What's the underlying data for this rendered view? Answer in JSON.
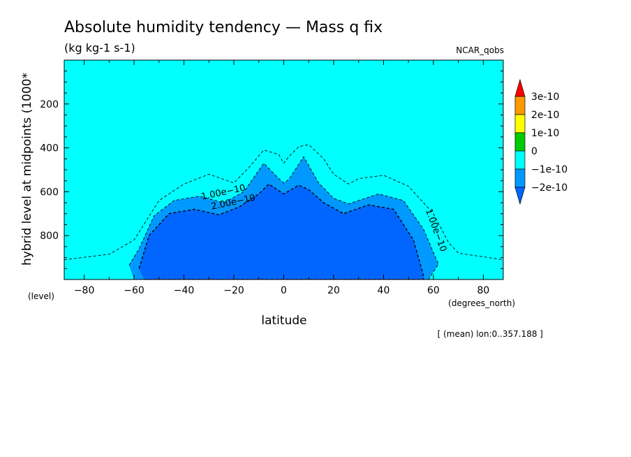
{
  "chart_data": {
    "type": "heatmap",
    "title": "Absolute humidity tendency — Mass q fix",
    "units": "(kg kg-1 s-1)",
    "source_label": "NCAR_qobs",
    "xlabel": "latitude",
    "xunits": "(degrees_north)",
    "ylabel": "hybrid level at midpoints (1000*",
    "yunits": "(level)",
    "footer": "[ (mean) lon:0..357.188 ]",
    "xlim": [
      -88,
      88
    ],
    "ylim": [
      1000,
      0
    ],
    "xticks": [
      -80,
      -60,
      -40,
      -20,
      0,
      20,
      40,
      60,
      80
    ],
    "xtick_labels": [
      "−80",
      "−60",
      "−40",
      "−20",
      "0",
      "20",
      "40",
      "60",
      "80"
    ],
    "yticks": [
      200,
      400,
      600,
      800
    ],
    "ytick_labels": [
      "200",
      "400",
      "600",
      "800"
    ],
    "background_color": "#00ffff",
    "levels": [
      {
        "label": "3e-10",
        "color": "#ff0000"
      },
      {
        "label": "2e-10",
        "color": "#ff9900"
      },
      {
        "label": "1e-10",
        "color": "#ffff00"
      },
      {
        "label": "0",
        "color": "#00cc00"
      },
      {
        "label": "−1e-10",
        "color": "#00ffff"
      },
      {
        "label": "−2e-10",
        "color": "#0099ff"
      }
    ],
    "lowest_color": "#0066ff",
    "contour_labels": [
      {
        "text": "1.00e−10",
        "x": -24,
        "y": 615
      },
      {
        "text": "2.00e−10",
        "x": -20,
        "y": 660
      },
      {
        "text": "1.00e−10",
        "x": 60,
        "y": 780
      }
    ],
    "contours": [
      {
        "name": "outer",
        "points": [
          [
            -88,
            910
          ],
          [
            -70,
            885
          ],
          [
            -60,
            820
          ],
          [
            -50,
            640
          ],
          [
            -40,
            565
          ],
          [
            -30,
            520
          ],
          [
            -20,
            560
          ],
          [
            -14,
            490
          ],
          [
            -8,
            410
          ],
          [
            -2,
            430
          ],
          [
            0,
            470
          ],
          [
            2,
            440
          ],
          [
            6,
            395
          ],
          [
            10,
            385
          ],
          [
            16,
            450
          ],
          [
            20,
            520
          ],
          [
            26,
            565
          ],
          [
            30,
            540
          ],
          [
            40,
            525
          ],
          [
            50,
            575
          ],
          [
            60,
            700
          ],
          [
            66,
            830
          ],
          [
            70,
            880
          ],
          [
            88,
            910
          ]
        ]
      },
      {
        "name": "middle",
        "points": [
          [
            -62,
            935
          ],
          [
            -58,
            860
          ],
          [
            -52,
            710
          ],
          [
            -44,
            640
          ],
          [
            -34,
            620
          ],
          [
            -24,
            650
          ],
          [
            -16,
            600
          ],
          [
            -8,
            470
          ],
          [
            -2,
            540
          ],
          [
            0,
            560
          ],
          [
            2,
            545
          ],
          [
            8,
            440
          ],
          [
            14,
            560
          ],
          [
            20,
            630
          ],
          [
            26,
            655
          ],
          [
            38,
            610
          ],
          [
            48,
            640
          ],
          [
            56,
            770
          ],
          [
            62,
            930
          ],
          [
            58,
            1000
          ],
          [
            -60,
            1000
          ]
        ]
      },
      {
        "name": "inner",
        "points": [
          [
            -58,
            950
          ],
          [
            -54,
            800
          ],
          [
            -46,
            700
          ],
          [
            -36,
            680
          ],
          [
            -26,
            705
          ],
          [
            -18,
            670
          ],
          [
            -10,
            610
          ],
          [
            -6,
            565
          ],
          [
            0,
            610
          ],
          [
            6,
            570
          ],
          [
            10,
            590
          ],
          [
            16,
            650
          ],
          [
            24,
            700
          ],
          [
            34,
            660
          ],
          [
            44,
            680
          ],
          [
            52,
            820
          ],
          [
            56,
            980
          ],
          [
            56,
            1000
          ],
          [
            -56,
            1000
          ]
        ]
      }
    ]
  }
}
